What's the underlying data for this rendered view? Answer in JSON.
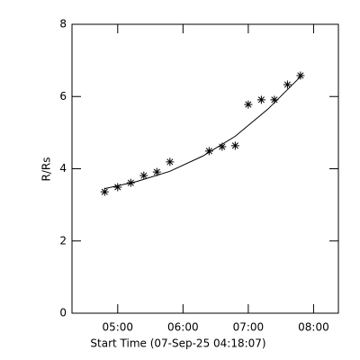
{
  "chart_data": {
    "type": "scatter",
    "xlabel": "Start Time (07-Sep-25 04:18:07)",
    "ylabel": "R/Rs",
    "x": [
      4.8,
      5.0,
      5.2,
      5.4,
      5.6,
      5.8,
      6.4,
      6.6,
      6.8,
      7.0,
      7.2,
      7.4,
      7.6,
      7.8
    ],
    "values": [
      3.36,
      3.49,
      3.61,
      3.81,
      3.91,
      4.19,
      4.49,
      4.61,
      4.64,
      5.78,
      5.91,
      5.91,
      6.33,
      6.58
    ],
    "fit": {
      "x": [
        4.8,
        5.3,
        5.8,
        6.3,
        6.8,
        7.3,
        7.8
      ],
      "values": [
        3.45,
        3.65,
        3.93,
        4.35,
        4.9,
        5.65,
        6.55
      ]
    },
    "color": "#000000",
    "xlim": [
      4.3,
      8.38
    ],
    "xticks": [
      {
        "value": 5,
        "label": "05:00"
      },
      {
        "value": 6,
        "label": "06:00"
      },
      {
        "value": 7,
        "label": "07:00"
      },
      {
        "value": 8,
        "label": "08:00"
      }
    ],
    "ylim": [
      0,
      8
    ],
    "yticks": [
      0,
      2,
      4,
      6,
      8
    ]
  }
}
